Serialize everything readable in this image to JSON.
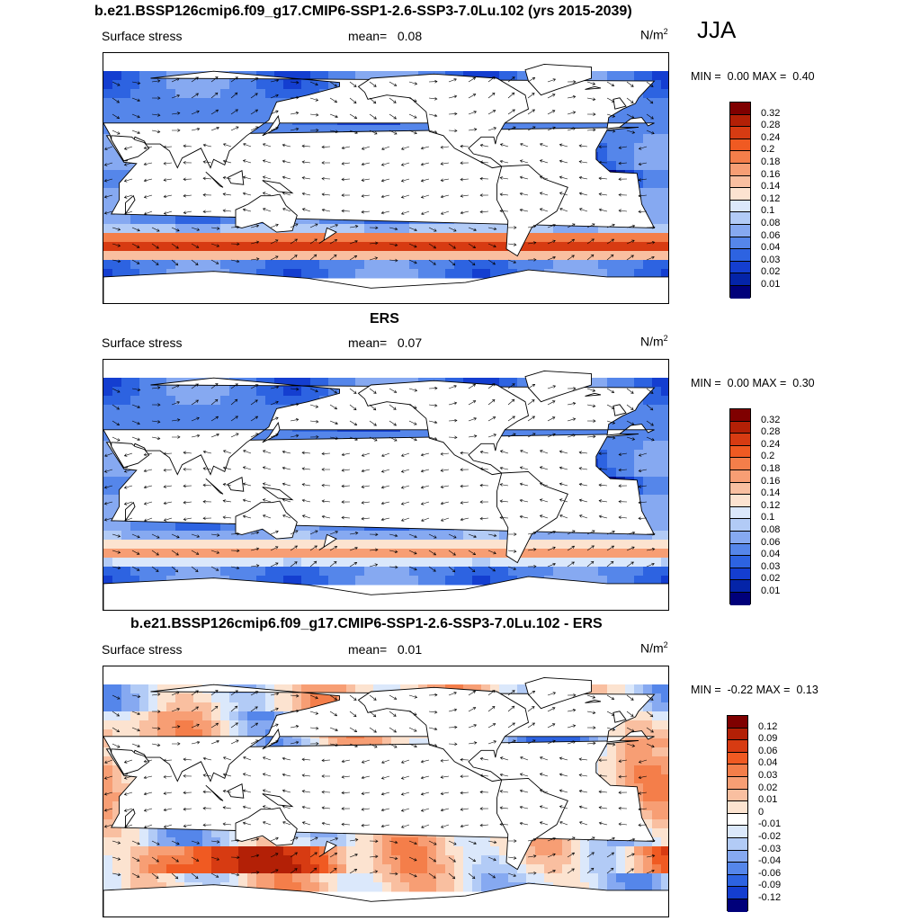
{
  "season": "JJA",
  "colors": {
    "ocean_blues": [
      "#00007a",
      "#0a2cc8",
      "#1f57e0",
      "#3e78ec",
      "#6c98f0",
      "#a4c0f6",
      "#d5e5fa"
    ],
    "ocean_reds": [
      "#fbe3d2",
      "#f7b394",
      "#f0805a",
      "#e4542b",
      "#cc3312",
      "#a31a06",
      "#7f0000"
    ],
    "land": "#ffffff",
    "coast": "#000000"
  },
  "panels": [
    {
      "title": "b.e21.BSSP126cmip6.f09_g17.CMIP6-SSP1-2.6-SSP3-7.0Lu.102 (yrs 2015-2039)",
      "left_label": "Surface stress",
      "mean_label": "mean=",
      "mean_value": "0.08",
      "units_base": "N/m",
      "units_exp": "2",
      "min_label": "MIN =",
      "min_value": "0.00",
      "max_label": "MAX =",
      "max_value": "0.40",
      "field": "model",
      "colorbar_labels": [
        "0.32",
        "0.28",
        "0.24",
        "0.2",
        "0.18",
        "0.16",
        "0.14",
        "0.12",
        "0.1",
        "0.08",
        "0.06",
        "0.04",
        "0.03",
        "0.02",
        "0.01"
      ],
      "colorbar_colors": [
        "#7f0000",
        "#b32006",
        "#d73b12",
        "#f05a22",
        "#f47e4a",
        "#f79e74",
        "#f9bfa0",
        "#fce3d0",
        "#dbe8fb",
        "#b2cbf6",
        "#86a9f1",
        "#5586ea",
        "#2d63e1",
        "#143ed0",
        "#0424a8",
        "#00007a"
      ]
    },
    {
      "title": "ERS",
      "left_label": "Surface stress",
      "mean_label": "mean=",
      "mean_value": "0.07",
      "units_base": "N/m",
      "units_exp": "2",
      "min_label": "MIN =",
      "min_value": "0.00",
      "max_label": "MAX =",
      "max_value": "0.30",
      "field": "obs",
      "colorbar_labels": [
        "0.32",
        "0.28",
        "0.24",
        "0.2",
        "0.18",
        "0.16",
        "0.14",
        "0.12",
        "0.1",
        "0.08",
        "0.06",
        "0.04",
        "0.03",
        "0.02",
        "0.01"
      ],
      "colorbar_colors": [
        "#7f0000",
        "#b32006",
        "#d73b12",
        "#f05a22",
        "#f47e4a",
        "#f79e74",
        "#f9bfa0",
        "#fce3d0",
        "#dbe8fb",
        "#b2cbf6",
        "#86a9f1",
        "#5586ea",
        "#2d63e1",
        "#143ed0",
        "#0424a8",
        "#00007a"
      ]
    },
    {
      "title": "b.e21.BSSP126cmip6.f09_g17.CMIP6-SSP1-2.6-SSP3-7.0Lu.102 - ERS",
      "left_label": "Surface stress",
      "mean_label": "mean=",
      "mean_value": "0.01",
      "units_base": "N/m",
      "units_exp": "2",
      "min_label": "MIN =",
      "min_value": "-0.22",
      "max_label": "MAX =",
      "max_value": "0.13",
      "field": "diff",
      "colorbar_labels": [
        "0.12",
        "0.09",
        "0.06",
        "0.04",
        "0.03",
        "0.02",
        "0.01",
        "0",
        "-0.01",
        "-0.02",
        "-0.03",
        "-0.04",
        "-0.06",
        "-0.09",
        "-0.12"
      ],
      "colorbar_colors": [
        "#7f0000",
        "#b32006",
        "#d73b12",
        "#f05a22",
        "#f47e4a",
        "#f79e74",
        "#f9bfa0",
        "#fce3d0",
        "#ffffff",
        "#dbe8fb",
        "#b2cbf6",
        "#86a9f1",
        "#5586ea",
        "#2d63e1",
        "#143ed0",
        "#00007a"
      ]
    }
  ]
}
